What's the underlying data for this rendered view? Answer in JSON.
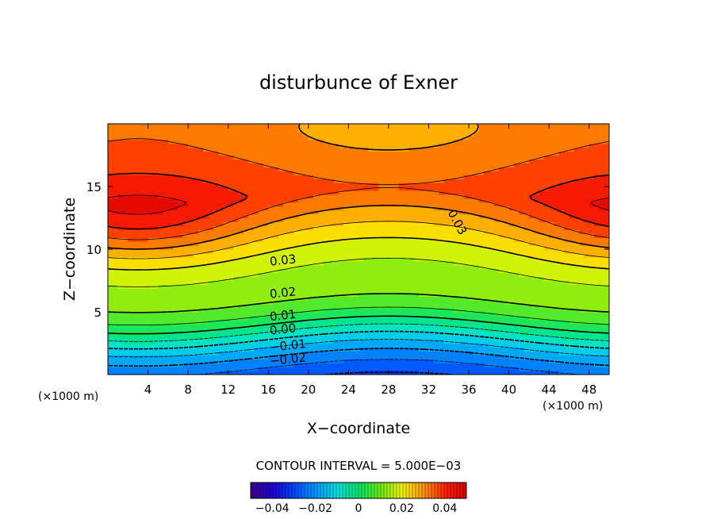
{
  "chart_data": {
    "type": "heatmap",
    "title": "disturbunce of Exner",
    "xlabel": "X−coordinate",
    "ylabel": "Z−coordinate",
    "x_unit": "(×1000 m)",
    "y_unit": "(×1000 m)",
    "xlim": [
      0,
      50
    ],
    "ylim": [
      0,
      20
    ],
    "x_ticks": [
      4,
      8,
      12,
      16,
      20,
      24,
      28,
      32,
      36,
      40,
      44,
      48
    ],
    "y_ticks": [
      5,
      10,
      15
    ],
    "contour_interval_text": "CONTOUR INTERVAL =  5.000E−03",
    "contour_interval": 0.005,
    "contour_labels": [
      {
        "text": "0.03",
        "x": 17.5,
        "y": 8.8
      },
      {
        "text": "0.03",
        "x": 34.5,
        "y": 12.0
      },
      {
        "text": "0.02",
        "x": 17.5,
        "y": 6.2
      },
      {
        "text": "0.01",
        "x": 17.5,
        "y": 4.4
      },
      {
        "text": "0.00",
        "x": 17.5,
        "y": 3.3
      },
      {
        "text": "−0.01",
        "x": 18.0,
        "y": 2.0
      },
      {
        "text": "−0.02",
        "x": 18.0,
        "y": 0.9
      }
    ],
    "colorbar": {
      "min": -0.05,
      "max": 0.05,
      "ticks": [
        -0.04,
        -0.02,
        0,
        0.02,
        0.04
      ],
      "tick_labels": [
        "−0.04",
        "−0.02",
        "0",
        "0.02",
        "0.04"
      ]
    },
    "field_extrema": {
      "max": 0.04,
      "max_locations": [
        [
          9,
          12
        ],
        [
          45,
          12
        ]
      ],
      "min": -0.026,
      "min_location": [
        28,
        0
      ]
    },
    "colors": {
      "high": "#ff1a00",
      "mid_high": "#ff9900",
      "zero": "#00e070",
      "low": "#0080ff"
    }
  }
}
